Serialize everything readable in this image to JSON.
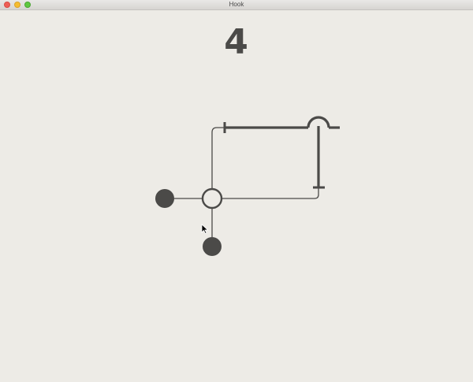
{
  "window": {
    "title": "Hook"
  },
  "game": {
    "level": "4",
    "colors": {
      "background": "#edebe6",
      "ink": "#4b4a48"
    }
  }
}
